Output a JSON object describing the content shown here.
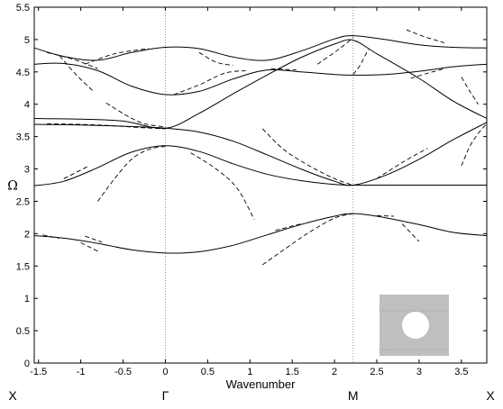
{
  "chart_data": {
    "type": "line",
    "title": "",
    "xlabel": "Wavenumber",
    "ylabel": "Ω",
    "xlim": [
      -1.55,
      3.8
    ],
    "ylim": [
      0,
      5.5
    ],
    "xticks": [
      -1.5,
      -1,
      -0.5,
      0,
      0.5,
      1,
      1.5,
      2,
      2.5,
      3,
      3.5
    ],
    "yticks": [
      0,
      0.5,
      1,
      1.5,
      2,
      2.5,
      3,
      3.5,
      4,
      4.5,
      5,
      5.5
    ],
    "xtick_labels": [
      "-1.5",
      "-1",
      "-0.5",
      "0",
      "0.5",
      "1",
      "1.5",
      "2",
      "2.5",
      "3",
      "3.5"
    ],
    "ytick_labels": [
      "0",
      "0.5",
      "1",
      "1.5",
      "2",
      "2.5",
      "3",
      "3.5",
      "4",
      "4.5",
      "5",
      "5.5"
    ],
    "grid": false,
    "symmetry_points": [
      {
        "label": "X",
        "x": -1.55
      },
      {
        "label": "Γ",
        "x": 0
      },
      {
        "label": "M",
        "x": 2.22
      },
      {
        "label": "X",
        "x": 3.8
      }
    ],
    "vertical_dotted_lines": [
      0,
      2.22
    ],
    "solid_bands": [
      [
        [
          -1.55,
          1.97
        ],
        [
          -1.2,
          1.93
        ],
        [
          -0.8,
          1.85
        ],
        [
          -0.4,
          1.75
        ],
        [
          0,
          1.7
        ],
        [
          0.4,
          1.72
        ],
        [
          0.8,
          1.82
        ],
        [
          1.2,
          1.98
        ],
        [
          1.6,
          2.14
        ],
        [
          2.0,
          2.27
        ],
        [
          2.22,
          2.31
        ],
        [
          2.5,
          2.27
        ],
        [
          3.0,
          2.14
        ],
        [
          3.4,
          2.02
        ],
        [
          3.8,
          1.97
        ]
      ],
      [
        [
          -1.55,
          2.74
        ],
        [
          -1.2,
          2.81
        ],
        [
          -0.8,
          3.02
        ],
        [
          -0.4,
          3.26
        ],
        [
          0,
          3.36
        ],
        [
          0.4,
          3.27
        ],
        [
          0.8,
          3.08
        ],
        [
          1.2,
          2.92
        ],
        [
          1.6,
          2.82
        ],
        [
          2.0,
          2.76
        ],
        [
          2.22,
          2.75
        ],
        [
          2.6,
          2.75
        ],
        [
          3.0,
          2.75
        ],
        [
          3.4,
          2.75
        ],
        [
          3.8,
          2.75
        ]
      ],
      [
        [
          -1.55,
          3.69
        ],
        [
          -1.0,
          3.68
        ],
        [
          -0.5,
          3.66
        ],
        [
          0,
          3.63
        ],
        [
          0.4,
          3.57
        ],
        [
          0.8,
          3.43
        ],
        [
          1.2,
          3.22
        ],
        [
          1.6,
          3.0
        ],
        [
          2.0,
          2.81
        ],
        [
          2.22,
          2.75
        ],
        [
          2.6,
          2.9
        ],
        [
          3.0,
          3.15
        ],
        [
          3.4,
          3.45
        ],
        [
          3.8,
          3.72
        ]
      ],
      [
        [
          -1.55,
          3.78
        ],
        [
          -1.0,
          3.77
        ],
        [
          -0.5,
          3.74
        ],
        [
          0,
          3.63
        ],
        [
          0.4,
          3.86
        ],
        [
          0.8,
          4.16
        ],
        [
          1.2,
          4.45
        ],
        [
          1.6,
          4.72
        ],
        [
          2.0,
          4.93
        ],
        [
          2.22,
          4.99
        ],
        [
          2.5,
          4.78
        ],
        [
          3.0,
          4.4
        ],
        [
          3.4,
          4.05
        ],
        [
          3.8,
          3.78
        ]
      ],
      [
        [
          -1.55,
          4.62
        ],
        [
          -1.2,
          4.63
        ],
        [
          -0.8,
          4.52
        ],
        [
          -0.4,
          4.28
        ],
        [
          0,
          4.15
        ],
        [
          0.4,
          4.2
        ],
        [
          0.8,
          4.39
        ],
        [
          1.2,
          4.53
        ],
        [
          1.6,
          4.5
        ],
        [
          2.0,
          4.46
        ],
        [
          2.22,
          4.45
        ],
        [
          2.6,
          4.46
        ],
        [
          3.0,
          4.51
        ],
        [
          3.4,
          4.58
        ],
        [
          3.8,
          4.62
        ]
      ],
      [
        [
          -1.55,
          4.87
        ],
        [
          -1.2,
          4.74
        ],
        [
          -0.8,
          4.68
        ],
        [
          -0.4,
          4.8
        ],
        [
          0,
          4.88
        ],
        [
          0.4,
          4.86
        ],
        [
          0.8,
          4.73
        ],
        [
          1.2,
          4.68
        ],
        [
          1.6,
          4.82
        ],
        [
          2.0,
          5.01
        ],
        [
          2.22,
          5.06
        ],
        [
          2.6,
          5.0
        ],
        [
          3.0,
          4.92
        ],
        [
          3.4,
          4.88
        ],
        [
          3.8,
          4.87
        ]
      ]
    ],
    "dashed_segments": [
      [
        [
          -1.45,
          1.98
        ],
        [
          -1.25,
          1.93
        ]
      ],
      [
        [
          -0.95,
          1.96
        ],
        [
          -0.75,
          1.87
        ]
      ],
      [
        [
          -1.0,
          1.86
        ],
        [
          -0.8,
          1.73
        ]
      ],
      [
        [
          2.5,
          2.28
        ],
        [
          2.7,
          2.27
        ]
      ],
      [
        [
          2.8,
          2.15
        ],
        [
          3.0,
          1.88
        ]
      ],
      [
        [
          -0.8,
          2.5
        ],
        [
          -0.6,
          2.85
        ],
        [
          -0.4,
          3.15
        ],
        [
          -0.2,
          3.3
        ],
        [
          0,
          3.35
        ]
      ],
      [
        [
          -1.2,
          2.85
        ],
        [
          -0.9,
          3.05
        ]
      ],
      [
        [
          0.3,
          3.25
        ],
        [
          0.6,
          3.0
        ],
        [
          0.85,
          2.7
        ],
        [
          1.05,
          2.22
        ]
      ],
      [
        [
          1.15,
          1.52
        ],
        [
          1.4,
          1.75
        ],
        [
          1.7,
          2.02
        ],
        [
          2.0,
          2.24
        ],
        [
          2.22,
          2.31
        ]
      ],
      [
        [
          1.3,
          2.05
        ],
        [
          1.6,
          2.15
        ]
      ],
      [
        [
          1.15,
          3.62
        ],
        [
          1.4,
          3.3
        ],
        [
          1.7,
          3.05
        ],
        [
          2.0,
          2.85
        ],
        [
          2.22,
          2.75
        ]
      ],
      [
        [
          2.5,
          2.85
        ],
        [
          2.8,
          3.1
        ],
        [
          3.1,
          3.32
        ]
      ],
      [
        [
          3.5,
          3.05
        ],
        [
          3.6,
          3.35
        ],
        [
          3.7,
          3.55
        ],
        [
          3.8,
          3.7
        ]
      ],
      [
        [
          -1.25,
          4.75
        ],
        [
          -1.05,
          4.45
        ],
        [
          -0.85,
          4.2
        ]
      ],
      [
        [
          -0.7,
          4.02
        ],
        [
          -0.45,
          3.82
        ],
        [
          -0.25,
          3.7
        ],
        [
          0,
          3.65
        ]
      ],
      [
        [
          -1.4,
          3.7
        ],
        [
          -0.8,
          3.68
        ],
        [
          -0.3,
          3.64
        ],
        [
          0,
          3.62
        ]
      ],
      [
        [
          -1.4,
          4.8
        ],
        [
          -1.1,
          4.7
        ],
        [
          -0.8,
          4.55
        ]
      ],
      [
        [
          -0.95,
          4.62
        ],
        [
          -0.6,
          4.78
        ],
        [
          -0.2,
          4.86
        ]
      ],
      [
        [
          0.1,
          4.15
        ],
        [
          0.4,
          4.3
        ],
        [
          0.7,
          4.48
        ],
        [
          0.95,
          4.52
        ]
      ],
      [
        [
          0.4,
          4.8
        ],
        [
          0.6,
          4.65
        ],
        [
          0.8,
          4.6
        ]
      ],
      [
        [
          1.25,
          4.55
        ],
        [
          1.55,
          4.53
        ]
      ],
      [
        [
          1.8,
          4.62
        ],
        [
          2.05,
          4.85
        ],
        [
          2.22,
          5.03
        ]
      ],
      [
        [
          2.22,
          4.46
        ],
        [
          2.3,
          4.6
        ],
        [
          2.4,
          4.85
        ]
      ],
      [
        [
          2.85,
          5.15
        ],
        [
          3.05,
          5.05
        ],
        [
          3.3,
          4.95
        ]
      ],
      [
        [
          2.9,
          4.4
        ],
        [
          3.1,
          4.48
        ],
        [
          3.3,
          4.55
        ]
      ],
      [
        [
          3.5,
          4.42
        ],
        [
          3.6,
          4.2
        ],
        [
          3.7,
          4.0
        ]
      ]
    ]
  }
}
